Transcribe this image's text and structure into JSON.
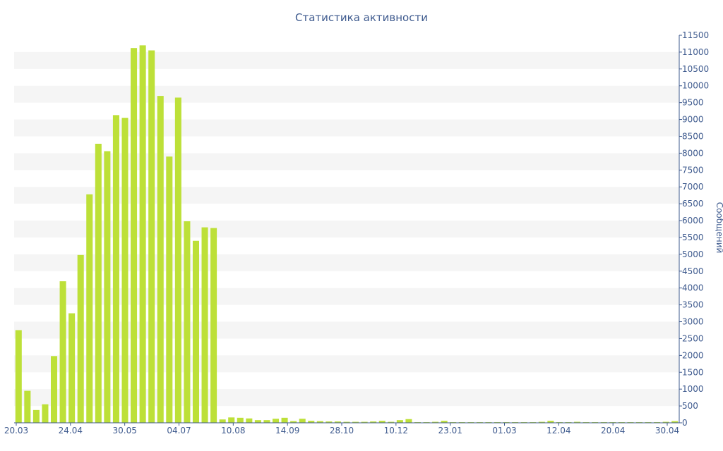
{
  "chart_data": {
    "type": "bar",
    "title": "Статистика активности",
    "xlabel": "",
    "ylabel": "Сообщений",
    "ylim": [
      0,
      11500
    ],
    "y_ticks": [
      0,
      500,
      1000,
      1500,
      2000,
      2500,
      3000,
      3500,
      4000,
      4500,
      5000,
      5500,
      6000,
      6500,
      7000,
      7500,
      8000,
      8500,
      9000,
      9500,
      10000,
      10500,
      11000,
      11500
    ],
    "x_tick_labels": [
      "20.03",
      "24.04",
      "30.05",
      "04.07",
      "10.08",
      "14.09",
      "28.10",
      "10.12",
      "23.01",
      "01.03",
      "12.04",
      "20.04",
      "30.04"
    ],
    "y_axis_position": "right",
    "grid": "alternating horizontal bands",
    "colors": {
      "bar": "#bde038",
      "text": "#3e5a8e",
      "band": "#f5f5f5"
    },
    "values": [
      2750,
      950,
      380,
      550,
      1980,
      4200,
      3250,
      4980,
      6780,
      8280,
      8060,
      9130,
      9050,
      11120,
      11200,
      11050,
      9700,
      7900,
      9650,
      5980,
      5400,
      5800,
      5780,
      100,
      160,
      150,
      130,
      80,
      80,
      120,
      150,
      50,
      120,
      60,
      50,
      40,
      40,
      30,
      30,
      30,
      40,
      60,
      30,
      80,
      110,
      20,
      20,
      30,
      60,
      20,
      20,
      20,
      20,
      20,
      20,
      20,
      20,
      20,
      20,
      30,
      60,
      20,
      20,
      30,
      20,
      20,
      20,
      20,
      20,
      20,
      20,
      20,
      20,
      30,
      50
    ]
  }
}
